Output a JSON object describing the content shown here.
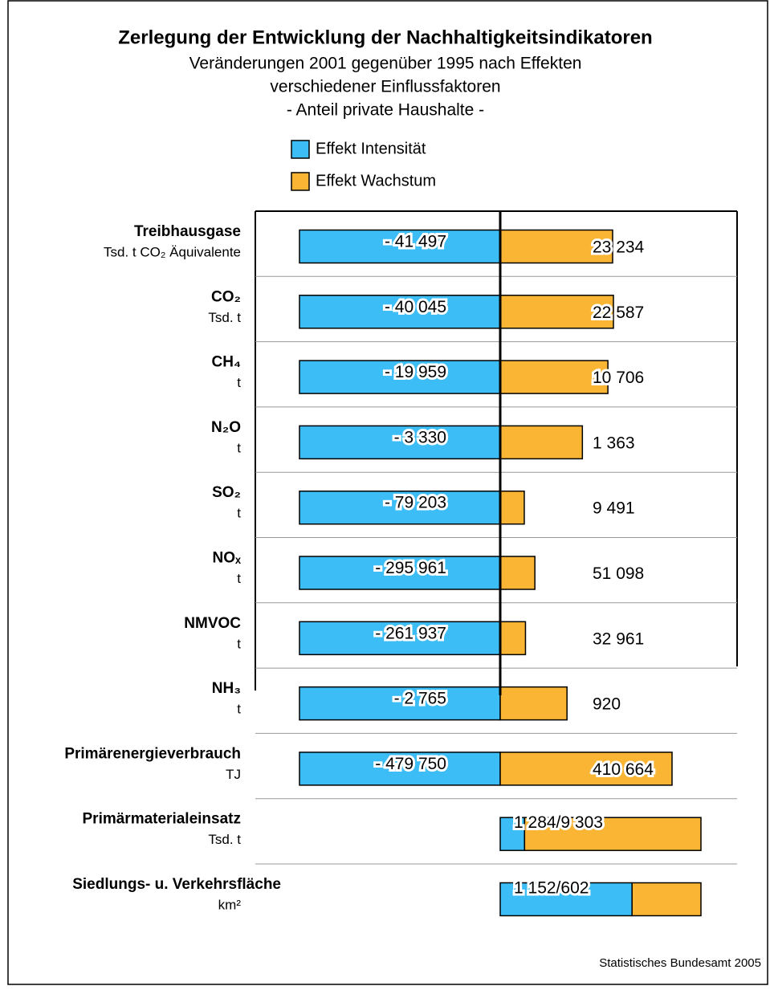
{
  "chart_data": {
    "type": "bar",
    "title": "Zerlegung der Entwicklung der Nachhaltigkeitsindikatoren",
    "subtitle": [
      "Veränderungen 2001 gegenüber 1995 nach Effekten",
      "verschiedener Einflussfaktoren",
      "- Anteil private Haushalte -"
    ],
    "categories": [
      "Treibhausgase",
      "CO₂",
      "CH₄",
      "N₂O",
      "SO₂",
      "NOₓ",
      "NMVOC",
      "NH₃",
      "Primärenergieverbrauch",
      "Primärmaterialeinsatz",
      "Siedlungs- u. Verkehrsfläche"
    ],
    "units": [
      "Tsd. t CO₂ Äquivalente",
      "Tsd. t",
      "t",
      "t",
      "t",
      "t",
      "t",
      "t",
      "TJ",
      "Tsd. t",
      "km²"
    ],
    "series": [
      {
        "name": "Effekt Intensität",
        "color": "#3dbdf5",
        "values": [
          -41497,
          -40045,
          -19959,
          -3330,
          -79203,
          -295961,
          -261937,
          -2765,
          -479750,
          1284,
          1152
        ],
        "value_labels": [
          "- 41 497",
          "- 40 045",
          "- 19 959",
          "- 3 330",
          "- 79 203",
          "- 295 961",
          "- 261 937",
          "- 2 765",
          "- 479 750",
          null,
          null
        ]
      },
      {
        "name": "Effekt Wachstum",
        "color": "#fbb535",
        "values": [
          23234,
          22587,
          10706,
          1363,
          9491,
          51098,
          32961,
          920,
          410664,
          9303,
          602
        ],
        "value_labels": [
          "23 234",
          "22 587",
          "10 706",
          "1 363",
          "9 491",
          "51 098",
          "32 961",
          "920",
          "410 664",
          null,
          null
        ]
      }
    ],
    "combined_labels": [
      null,
      null,
      null,
      null,
      null,
      null,
      null,
      null,
      null,
      "1 284/9 303",
      "1 152/602"
    ],
    "source": "Statistisches Bundesamt 2005"
  }
}
